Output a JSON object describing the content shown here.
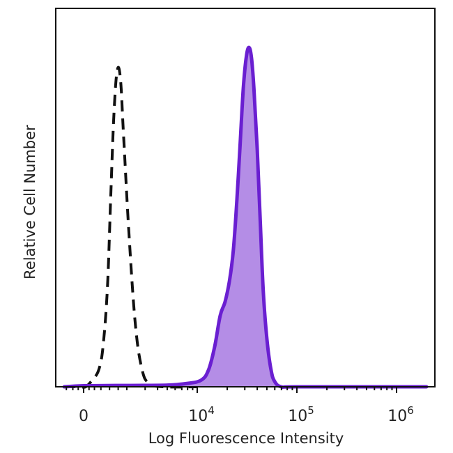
{
  "chart_data": {
    "type": "area",
    "xlabel": "Log Fluorescence Intensity",
    "ylabel": "Relative Cell Number",
    "x_scale": "biexponential",
    "y_scale": "linear",
    "ylim": [
      0,
      1
    ],
    "grid": false,
    "legend": "none",
    "x_ticks": [
      {
        "value": 0,
        "base": "0",
        "exp": ""
      },
      {
        "value": 10000,
        "base": "10",
        "exp": "4"
      },
      {
        "value": 100000,
        "base": "10",
        "exp": "5"
      },
      {
        "value": 1000000,
        "base": "10",
        "exp": "6"
      }
    ],
    "series": [
      {
        "style": "dashed-black",
        "color": "#111111",
        "fill": "none",
        "points": [
          [
            -900,
            0.0
          ],
          [
            -200,
            0.0
          ],
          [
            100,
            0.0
          ],
          [
            400,
            0.02
          ],
          [
            700,
            0.05
          ],
          [
            900,
            0.12
          ],
          [
            1100,
            0.29
          ],
          [
            1250,
            0.55
          ],
          [
            1400,
            0.8
          ],
          [
            1550,
            0.93
          ],
          [
            1700,
            0.91
          ],
          [
            1850,
            0.74
          ],
          [
            2100,
            0.45
          ],
          [
            2400,
            0.18
          ],
          [
            2800,
            0.05
          ],
          [
            3300,
            0.01
          ],
          [
            4500,
            0.0
          ],
          [
            10000,
            0.0
          ]
        ]
      },
      {
        "style": "solid-purple-filled",
        "color": "#6a1fd1",
        "fill": "#b48de6",
        "points": [
          [
            -900,
            0.0
          ],
          [
            0,
            0.003
          ],
          [
            2000,
            0.004
          ],
          [
            5000,
            0.005
          ],
          [
            8000,
            0.01
          ],
          [
            11000,
            0.02
          ],
          [
            13000,
            0.05
          ],
          [
            15000,
            0.12
          ],
          [
            17000,
            0.21
          ],
          [
            19000,
            0.25
          ],
          [
            21000,
            0.31
          ],
          [
            23000,
            0.4
          ],
          [
            25000,
            0.55
          ],
          [
            27000,
            0.72
          ],
          [
            29000,
            0.88
          ],
          [
            31000,
            0.97
          ],
          [
            33000,
            1.0
          ],
          [
            35000,
            0.97
          ],
          [
            37000,
            0.88
          ],
          [
            40000,
            0.7
          ],
          [
            43000,
            0.48
          ],
          [
            46000,
            0.28
          ],
          [
            50000,
            0.14
          ],
          [
            55000,
            0.05
          ],
          [
            60000,
            0.015
          ],
          [
            70000,
            0.0
          ],
          [
            100000,
            0.0
          ],
          [
            1000000,
            0.0
          ],
          [
            2000000,
            0.0
          ]
        ]
      }
    ]
  }
}
